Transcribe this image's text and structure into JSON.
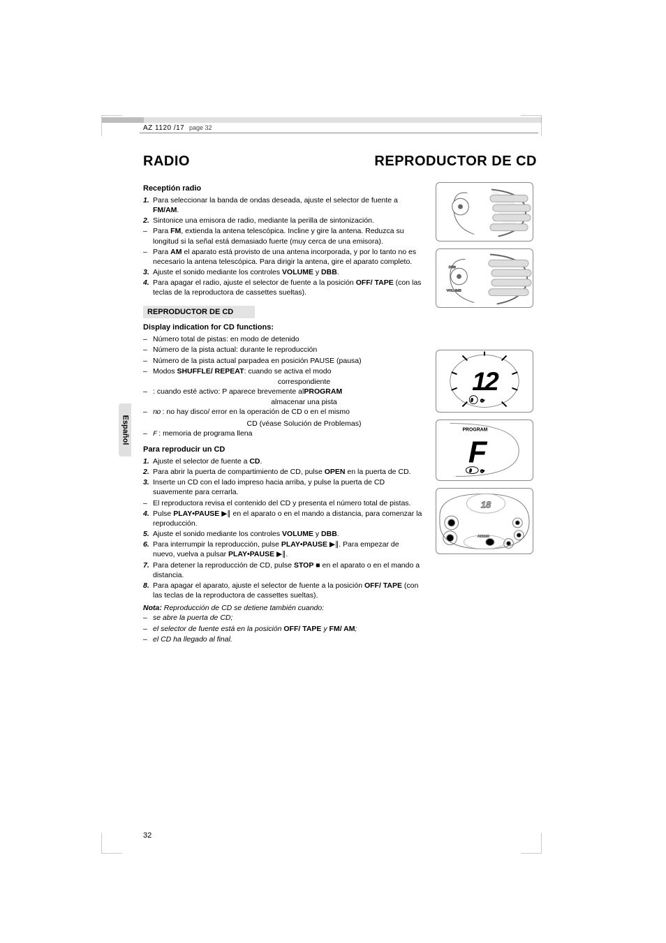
{
  "header": {
    "model": "AZ 1120 /17",
    "page_note": "page 32"
  },
  "tab_label": "Español",
  "titles": {
    "left": "RADIO",
    "right": "REPRODUCTOR DE CD"
  },
  "radio": {
    "heading": "Receptión radio",
    "items": [
      {
        "n": "1.",
        "text": "Para seleccionar la banda de ondas deseada, ajuste el selector de fuente a ",
        "bold": "FM/AM",
        "text2": "."
      },
      {
        "n": "2.",
        "text": "Sintonice una emisora de radio, mediante la perilla de sintonización."
      },
      {
        "n": "–",
        "text": "Para ",
        "bold": "FM",
        "text2": ", extienda la antena telescópica. Incline y gire la antena. Reduzca su longitud si la señal está demasiado fuerte (muy cerca de una emisora)."
      },
      {
        "n": "–",
        "text": "Para ",
        "bold": "AM",
        "text2": " el aparato está provisto de una antena incorporada, y por lo tanto no es necesario la antena telescópica. Para dirigir la antena, gire el aparato completo."
      },
      {
        "n": "3.",
        "text": "Ajuste el sonido mediante los controles ",
        "bold": "VOLUME",
        "text2": " y ",
        "bold2": "DBB",
        "text3": "."
      },
      {
        "n": "4.",
        "text": "Para apagar el radio, ajuste el selector de fuente a la posición ",
        "bold": "OFF/ TAPE",
        "text2": " (con las teclas de la reproductora de cassettes sueltas)."
      }
    ]
  },
  "cd_section_label": "REPRODUCTOR DE CD",
  "display": {
    "heading": "Display indication for CD functions:",
    "items": [
      {
        "n": "–",
        "text": "Número total de pistas: en modo de detenido"
      },
      {
        "n": "–",
        "text": "Número de la pista actual: durante le reproducción"
      },
      {
        "n": "–",
        "text": "Número de la pista actual parpadea en posición PAUSE (pausa)"
      },
      {
        "n": "–",
        "text": "Modos ",
        "bold": "SHUFFLE/ REPEAT",
        "text2": ": cuando se activa el modo",
        "cont": "correspondiente"
      },
      {
        "n": "–",
        "bold": "PROGRAM",
        "text": ": cuando esté activo: P aparece brevemente al",
        "cont": "almacenar una pista"
      },
      {
        "n": "–",
        "sym": "no",
        "text": " : no hay disco/ error en la operación de CD o en el mismo",
        "cont": "CD (véase Solución de Problemas)"
      },
      {
        "n": "–",
        "sym": "F",
        "text": " : memoria de programa llena"
      }
    ]
  },
  "play": {
    "heading": "Para reproducir un CD",
    "items": [
      {
        "n": "1.",
        "text": "Ajuste el selector de fuente a ",
        "bold": "CD",
        "text2": "."
      },
      {
        "n": "2.",
        "text": "Para abrir la puerta de compartimiento de CD, pulse ",
        "bold": "OPEN",
        "text2": " en la puerta de CD."
      },
      {
        "n": "3.",
        "text": "Inserte un CD con el lado impreso hacia arriba, y pulse la puerta de CD suavemente para cerrarla."
      },
      {
        "n": "–",
        "text": "El reproductora revisa el contenido del CD y presenta el número total de pistas."
      },
      {
        "n": "4.",
        "text": "Pulse ",
        "bold": "PLAY•PAUSE",
        "sym": " ▶∥",
        "text2": " en el aparato o en el mando a distancia, para comenzar la reproducción."
      },
      {
        "n": "5.",
        "text": "Ajuste el sonido mediante los controles ",
        "bold": "VOLUME",
        "text2": " y ",
        "bold2": "DBB",
        "text3": "."
      },
      {
        "n": "6.",
        "text": "Para interrumpir la reproducción, pulse ",
        "bold": "PLAY•PAUSE",
        "sym": " ▶∥",
        "text2": ". Para empezar de nuevo, vuelva a pulsar ",
        "bold2": "PLAY•PAUSE",
        "sym2": " ▶∥",
        "text3": "."
      },
      {
        "n": "7.",
        "text": "Para detener la reproducción de CD, pulse ",
        "bold": "STOP",
        "sym": " ■",
        "text2": " en el aparato o en el mando a distancia."
      },
      {
        "n": "8.",
        "text": "Para apagar el aparato, ajuste el selector de fuente a la posición ",
        "bold": "OFF/ TAPE",
        "text2": " (con las teclas de la reproductora de cassettes sueltas)."
      }
    ],
    "note_label": "Nota:",
    "note_lead": " Reproducción de CD se detiene también cuando:",
    "notes": [
      {
        "n": "–",
        "text": "se abre la puerta de CD;"
      },
      {
        "n": "–",
        "text": "el selector de fuente está en la posición ",
        "bold": "OFF/ TAPE",
        "text2": " y ",
        "bold2": "FM/ AM",
        "text3": ";"
      },
      {
        "n": "–",
        "text": "el CD ha llegado al final."
      }
    ]
  },
  "illus": {
    "label_program": "PROGRAM",
    "display_big": "12",
    "display_f": "F"
  },
  "page_number": "32",
  "colors": {
    "grey_bar_dark": "#bdbdbd",
    "grey_bar_light": "#e0e0e0",
    "text": "#000000",
    "bg": "#ffffff",
    "box_bg": "#e3e3e3",
    "rule": "#888888"
  },
  "fonts": {
    "body_size_pt": 10.5,
    "heading_size_pt": 20,
    "subhead_size_pt": 11
  }
}
